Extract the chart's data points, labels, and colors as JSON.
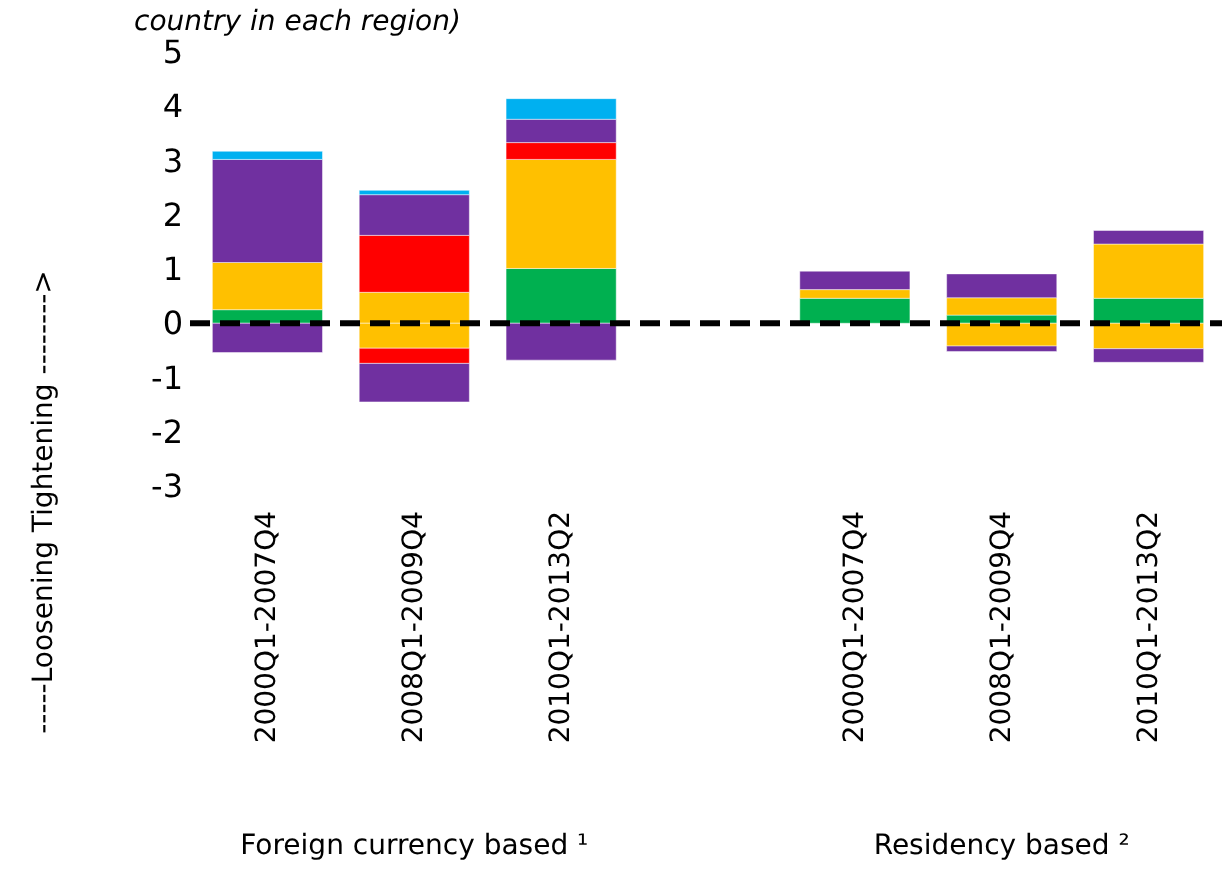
{
  "chart_data": {
    "type": "bar",
    "stacked": true,
    "title": "country in each region)",
    "ylabel": "-----Loosening Tightening -------->",
    "categories": [
      "2000Q1-2007Q4",
      "2008Q1-2009Q4",
      "2010Q1-2013Q2",
      null,
      "2000Q1-2007Q4",
      "2008Q1-2009Q4",
      "2010Q1-2013Q2"
    ],
    "series": [
      {
        "color": "#00b050",
        "values": [
          0.25,
          null,
          1.01,
          null,
          0.46,
          0.15,
          0.46
        ]
      },
      {
        "color": "#ffc000",
        "values": [
          0.87,
          0.57,
          2.01,
          null,
          0.16,
          0.32,
          1.0
        ]
      },
      {
        "color": "#ff0000",
        "values": [
          null,
          1.05,
          0.31,
          null,
          null,
          null,
          null
        ]
      },
      {
        "color": "#7030a0",
        "values": [
          1.9,
          0.75,
          0.43,
          null,
          0.34,
          0.44,
          0.25
        ]
      },
      {
        "color": "#00b0f0",
        "values": [
          0.15,
          0.08,
          0.38,
          null,
          null,
          null,
          null
        ]
      },
      {
        "color": "#ffc000",
        "values": [
          null,
          -0.46,
          null,
          null,
          null,
          -0.42,
          -0.47
        ]
      },
      {
        "color": "#ff0000",
        "values": [
          null,
          -0.28,
          null,
          null,
          null,
          null,
          null
        ]
      },
      {
        "color": "#7030a0",
        "values": [
          -0.54,
          -0.71,
          -0.68,
          null,
          null,
          -0.1,
          -0.25
        ]
      }
    ],
    "ylim": [
      -3,
      5
    ],
    "yticks": [
      -3,
      -2,
      -1,
      0,
      1,
      2,
      3,
      4,
      5
    ],
    "grid": false,
    "legend": false,
    "ref_lines": [
      {
        "axis": "y",
        "value": 0,
        "color": "#000000",
        "line_style": "dashed"
      }
    ],
    "annotations": [
      "Foreign currency based ¹",
      "Residency based ²"
    ]
  }
}
